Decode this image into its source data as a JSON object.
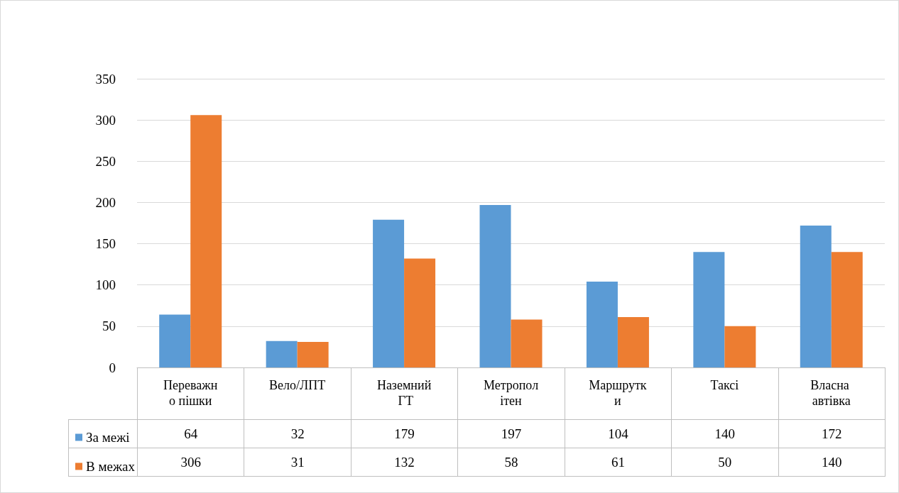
{
  "chart_data": {
    "type": "bar",
    "categories": [
      "Переважно пішки",
      "Вело/ЛПТ",
      "Наземний ГТ",
      "Метрополітен",
      "Маршрутки",
      "Таксі",
      "Власна автівка"
    ],
    "series": [
      {
        "name": "За межі",
        "color": "#5b9bd5",
        "values": [
          64,
          32,
          179,
          197,
          104,
          140,
          172
        ]
      },
      {
        "name": "В межах",
        "color": "#ed7d31",
        "values": [
          306,
          31,
          132,
          58,
          61,
          50,
          140
        ]
      }
    ],
    "ylim": [
      0,
      350
    ],
    "yticks": [
      0,
      50,
      100,
      150,
      200,
      250,
      300,
      350
    ],
    "grid": "y",
    "legend": "bottom",
    "data_labels": true
  }
}
